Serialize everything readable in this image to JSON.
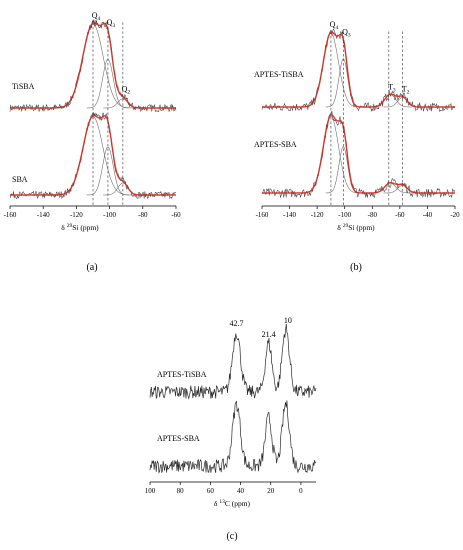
{
  "chart_data": [
    {
      "panel": "(a)",
      "type": "line",
      "xlabel_prefix": "δ ",
      "xlabel_sup": "29",
      "xlabel_rest": "Si (ppm)",
      "x_reversed": true,
      "xlim": [
        -160,
        -60
      ],
      "xticks": [
        -160,
        -140,
        -120,
        -100,
        -80,
        -60
      ],
      "peak_labels": [
        {
          "sym": "Q",
          "sub": "4",
          "x": -110
        },
        {
          "sym": "Q",
          "sub": "3",
          "x": -101
        },
        {
          "sym": "Q",
          "sub": "2",
          "x": -92
        }
      ],
      "spectra": [
        {
          "name": "TiSBA",
          "components": [
            {
              "center": -110,
              "height": 1.0,
              "width": 6.2
            },
            {
              "center": -101,
              "height": 0.58,
              "width": 3.2
            },
            {
              "center": -92,
              "height": 0.11,
              "width": 3.0
            }
          ]
        },
        {
          "name": "SBA",
          "components": [
            {
              "center": -110,
              "height": 0.98,
              "width": 6.0
            },
            {
              "center": -101,
              "height": 0.6,
              "width": 3.2
            },
            {
              "center": -92,
              "height": 0.15,
              "width": 3.0
            }
          ]
        }
      ]
    },
    {
      "panel": "(b)",
      "type": "line",
      "xlabel_prefix": "δ ",
      "xlabel_sup": "29",
      "xlabel_rest": "Si (ppm)",
      "x_reversed": true,
      "xlim": [
        -160,
        -20
      ],
      "xticks": [
        -160,
        -140,
        -120,
        -100,
        -80,
        -60,
        -40,
        -20
      ],
      "peak_labels": [
        {
          "sym": "Q",
          "sub": "4",
          "x": -110
        },
        {
          "sym": "Q",
          "sub": "3",
          "x": -101
        },
        {
          "sym": "T",
          "sub": "3",
          "x": -68
        },
        {
          "sym": "T",
          "sub": "2",
          "x": -58
        }
      ],
      "spectra": [
        {
          "name": "APTES-TiSBA",
          "components": [
            {
              "center": -110,
              "height": 1.0,
              "width": 5.5
            },
            {
              "center": -101,
              "height": 0.65,
              "width": 3.2
            },
            {
              "center": -67,
              "height": 0.17,
              "width": 4.0
            },
            {
              "center": -58,
              "height": 0.13,
              "width": 3.5
            }
          ]
        },
        {
          "name": "APTES-SBA",
          "components": [
            {
              "center": -110,
              "height": 1.0,
              "width": 5.5
            },
            {
              "center": -101,
              "height": 0.6,
              "width": 3.2
            },
            {
              "center": -67,
              "height": 0.13,
              "width": 4.0
            },
            {
              "center": -58,
              "height": 0.1,
              "width": 3.5
            }
          ]
        }
      ]
    },
    {
      "panel": "(c)",
      "type": "line",
      "xlabel_prefix": "δ ",
      "xlabel_sup": "13",
      "xlabel_rest": "C (ppm)",
      "x_reversed": true,
      "xlim": [
        100,
        -10
      ],
      "xticks": [
        100,
        80,
        60,
        40,
        20,
        0
      ],
      "peak_labels": [
        {
          "text": "42.7",
          "x": 42.7
        },
        {
          "text": "21.4",
          "x": 21.4
        },
        {
          "text": "10",
          "x": 10
        }
      ],
      "spectra": [
        {
          "name": "APTES-TiSBA",
          "components": [
            {
              "center": 42.7,
              "height": 1.0,
              "width": 2.6
            },
            {
              "center": 21.4,
              "height": 0.82,
              "width": 2.2
            },
            {
              "center": 10,
              "height": 1.05,
              "width": 2.4
            }
          ]
        },
        {
          "name": "APTES-SBA",
          "components": [
            {
              "center": 42.7,
              "height": 1.0,
              "width": 2.6
            },
            {
              "center": 21.4,
              "height": 0.78,
              "width": 2.2
            },
            {
              "center": 10,
              "height": 1.0,
              "width": 2.4
            }
          ]
        }
      ]
    }
  ],
  "colors": {
    "experimental": "#3a3a3a",
    "fit": "#d22a1f",
    "component": "#6f6f6f"
  }
}
